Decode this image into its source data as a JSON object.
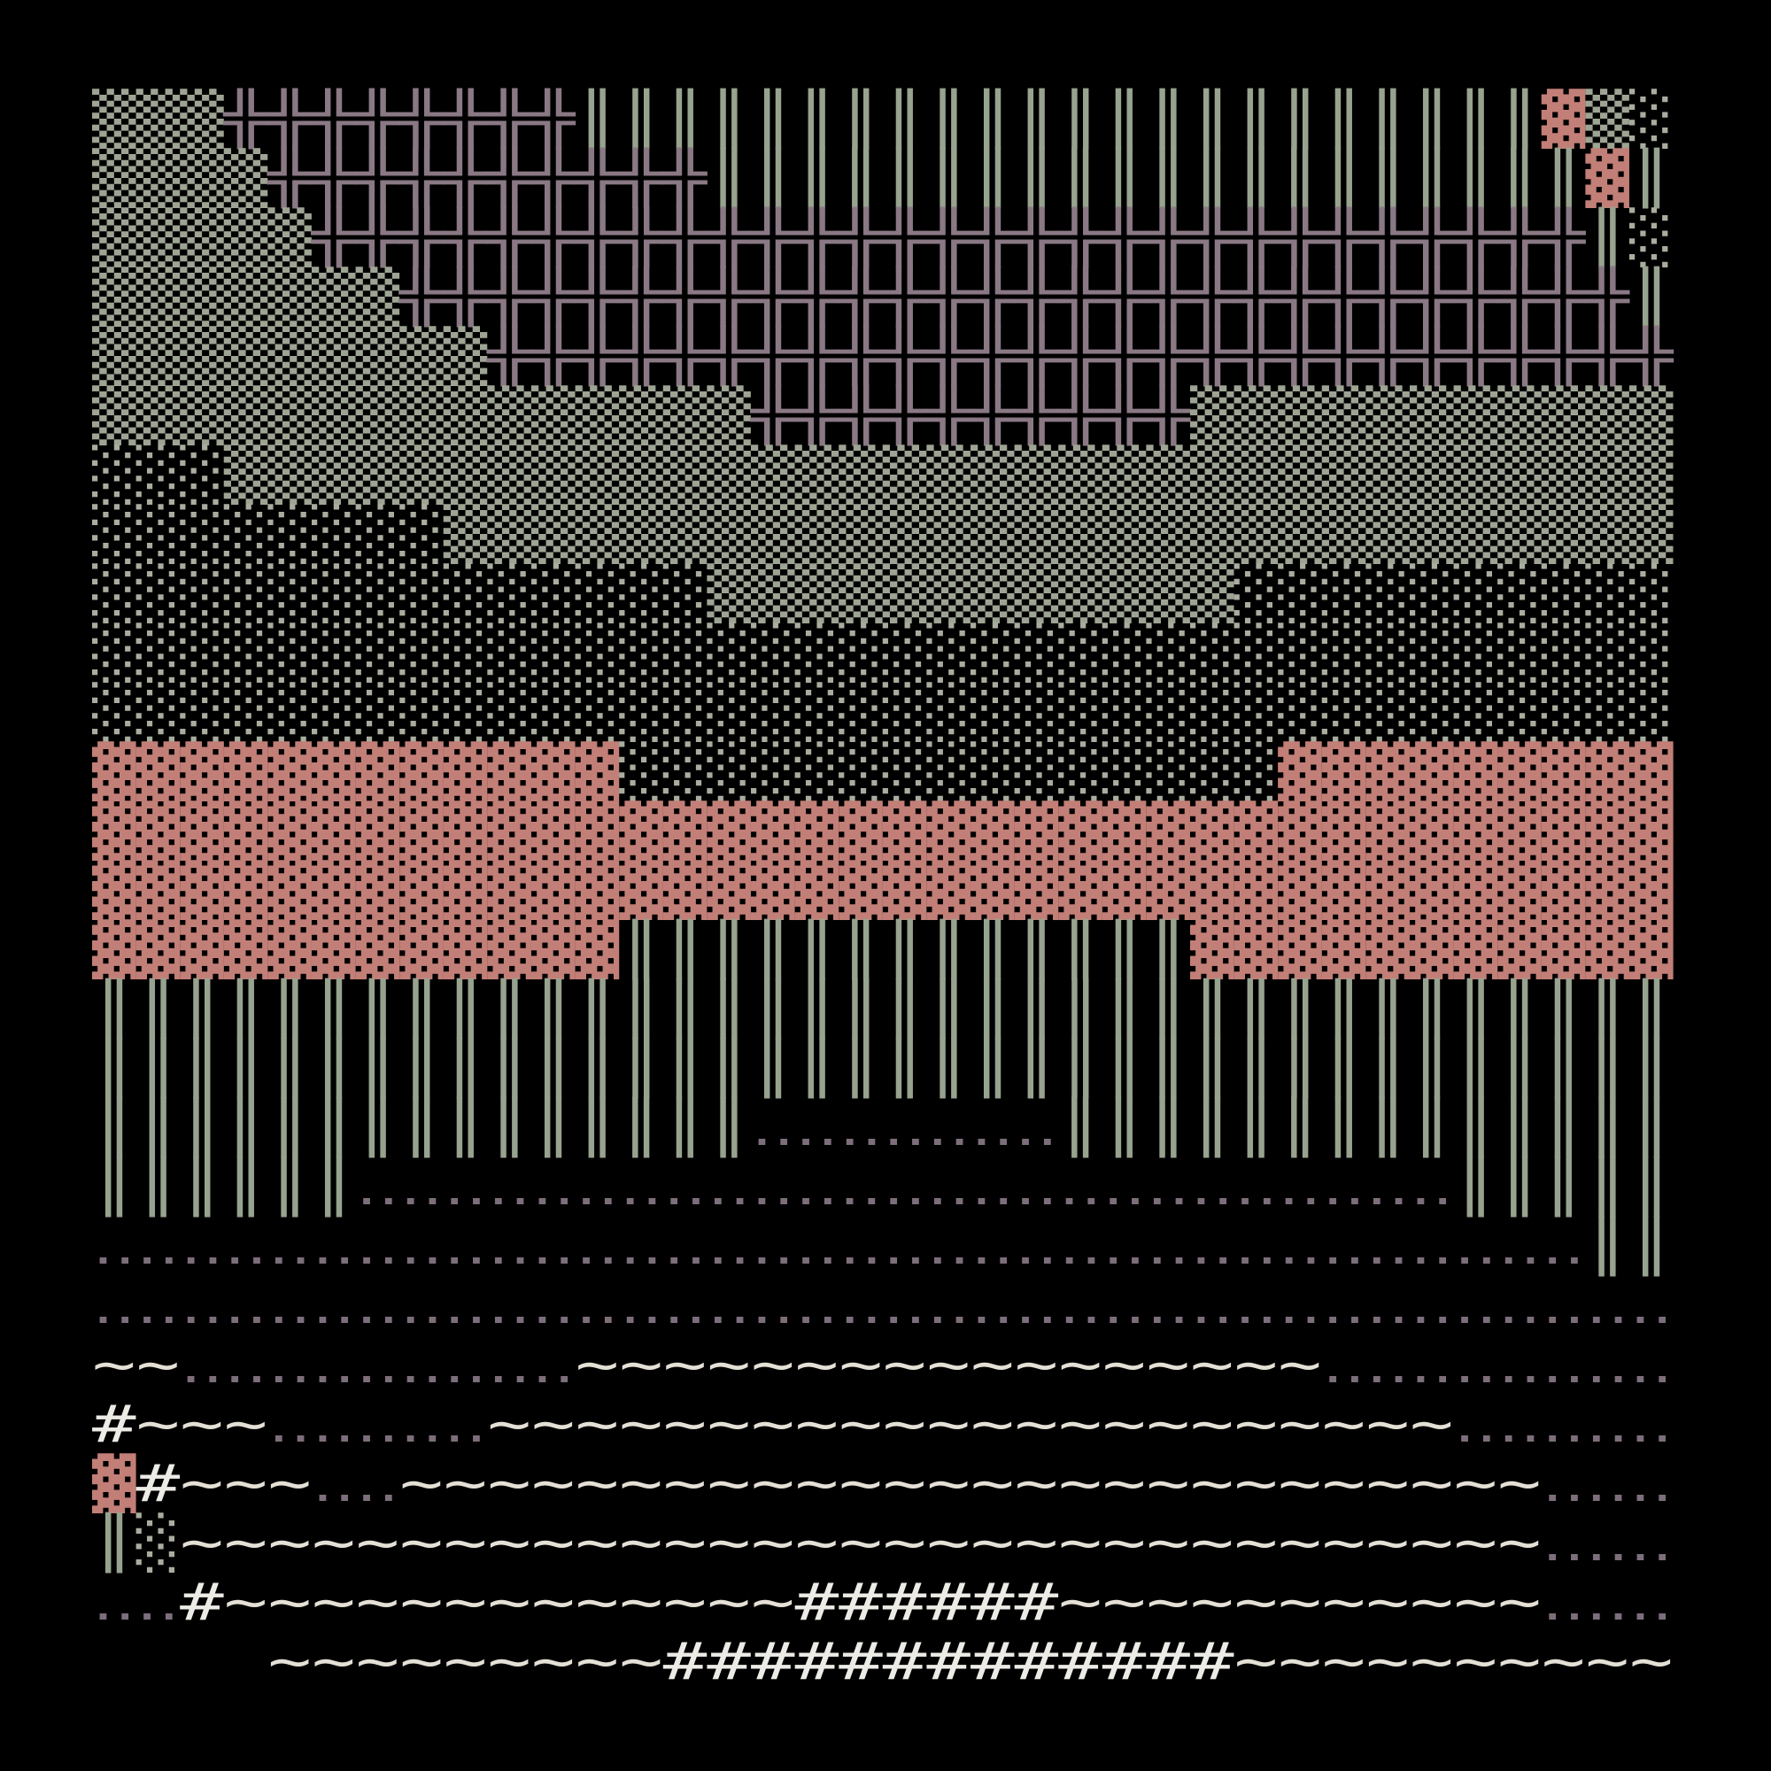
{
  "map": {
    "palette": {
      "▒": "#9ea493",
      "░": "#a9ad9f",
      "╬": "#8a7984",
      "║": "#97a38f",
      "▓": "#c27f77",
      "‥": "#7d6e7b",
      "~": "#e4e0d6",
      "#": "#ecebe6"
    },
    "rows": [
      [
        "▒▒▒",
        "╬╬╬╬╬╬╬╬",
        "║║║║║║║║║║║║║║║║║║║║║║",
        "▓",
        "▒",
        "░"
      ],
      [
        "▒▒▒▒",
        "╬╬╬╬╬╬╬╬╬╬",
        "║║║║║║║║║║║║║║║║║║║║",
        "▓",
        "║"
      ],
      [
        "▒▒▒▒▒",
        "╬╬╬╬╬╬╬╬╬╬╬╬╬╬╬╬╬╬╬╬╬╬╬╬╬╬╬╬╬",
        "║",
        "░"
      ],
      [
        "▒▒▒▒▒▒▒",
        "╬╬╬╬╬╬╬╬╬╬╬╬╬╬╬╬╬╬╬╬╬╬╬╬╬╬╬╬",
        "║"
      ],
      [
        "▒▒▒▒▒▒▒▒▒",
        "╬╬╬╬╬╬╬╬╬╬╬╬╬╬╬╬╬╬╬╬╬╬╬╬╬╬╬"
      ],
      [
        "▒▒▒▒▒▒▒▒▒▒▒▒▒▒▒",
        "╬╬╬╬╬╬╬╬╬╬",
        "▒▒▒▒▒▒▒▒▒▒▒"
      ],
      [
        "░░░",
        "▒▒▒▒▒▒▒▒▒▒▒▒▒▒▒▒▒▒▒▒▒▒▒▒▒▒▒▒▒▒▒▒▒"
      ],
      [
        "░░░░░░░░",
        "▒▒▒▒▒▒▒▒▒▒▒▒▒▒▒▒▒▒▒▒▒▒▒▒▒▒▒▒"
      ],
      [
        "░░░░░░░░░░░░░░",
        "▒▒▒▒▒▒▒▒▒▒▒▒",
        "░░░░░░░░░░"
      ],
      [
        "░░░░░░░░░░░░░░░░░░░░░░░░░░░░░░░░░░░░"
      ],
      [
        "░░░░░░░░░░░░░░░░░░░░░░░░░░░░░░░░░░░░"
      ],
      [
        "▓▓▓▓▓▓▓▓▓▓▓▓",
        "░░░░░░░░░░░░░░░",
        "▓▓▓▓▓▓▓▓▓"
      ],
      [
        "▓▓▓▓▓▓▓▓▓▓▓▓▓▓▓▓▓▓▓▓▓▓▓▓▓▓▓▓▓▓▓▓▓▓▓▓"
      ],
      [
        "▓▓▓▓▓▓▓▓▓▓▓▓▓▓▓▓▓▓▓▓▓▓▓▓▓▓▓▓▓▓▓▓▓▓▓▓"
      ],
      [
        "▓▓▓▓▓▓▓▓▓▓▓▓",
        "║║║║║║║║║║║║║",
        "▓▓▓▓▓▓▓▓▓▓▓"
      ],
      [
        "║║║║║║║║║║║║║║║║║║║║║║║║║║║║║║║║║║║║"
      ],
      [
        "║║║║║║║║║║║║║║║║║║║║║║║║║║║║║║║║║║║║"
      ],
      [
        "║║║║║║║║║║║║║║║",
        "‥‥‥‥‥‥‥",
        "║║║║║║║║║║║║║║"
      ],
      [
        "║║║║║║",
        "‥‥‥‥‥‥‥‥‥‥‥‥‥‥‥‥‥‥‥‥‥‥‥‥‥",
        "║║║║║"
      ],
      [
        "‥‥‥‥‥‥‥‥‥‥‥‥‥‥‥‥‥‥‥‥‥‥‥‥‥‥‥‥‥‥‥‥‥‥",
        "║║"
      ],
      [
        "‥‥‥‥‥‥‥‥‥‥‥‥‥‥‥‥‥‥‥‥‥‥‥‥‥‥‥‥‥‥‥‥‥‥‥‥"
      ],
      [
        "~~",
        "‥‥‥‥‥‥‥‥‥",
        "~~~~~~~~~~~~~~~~~",
        "‥‥‥‥‥‥‥‥"
      ],
      [
        "#",
        "~~~",
        "‥‥‥‥‥",
        "~~~~~~~~~~~~~~~~~~~~~~",
        "‥‥‥‥‥"
      ],
      [
        "▓",
        "#",
        "~~~",
        "‥‥",
        "~~~~~~~~~~~~~~~~~~~~~~~~~~",
        "‥‥‥"
      ],
      [
        "║",
        "░",
        "~~~~~~~~~~~~~~~~~~~~~~~~~~~~~~~",
        "‥‥‥"
      ],
      [
        "‥‥",
        "#",
        "~~~~~~~~~~~~~",
        "######",
        "~~~~~~~~~~~",
        "‥‥‥"
      ],
      [
        "    ~~~~~~~~~",
        "#############",
        "~~~~~~~~~~"
      ]
    ]
  }
}
